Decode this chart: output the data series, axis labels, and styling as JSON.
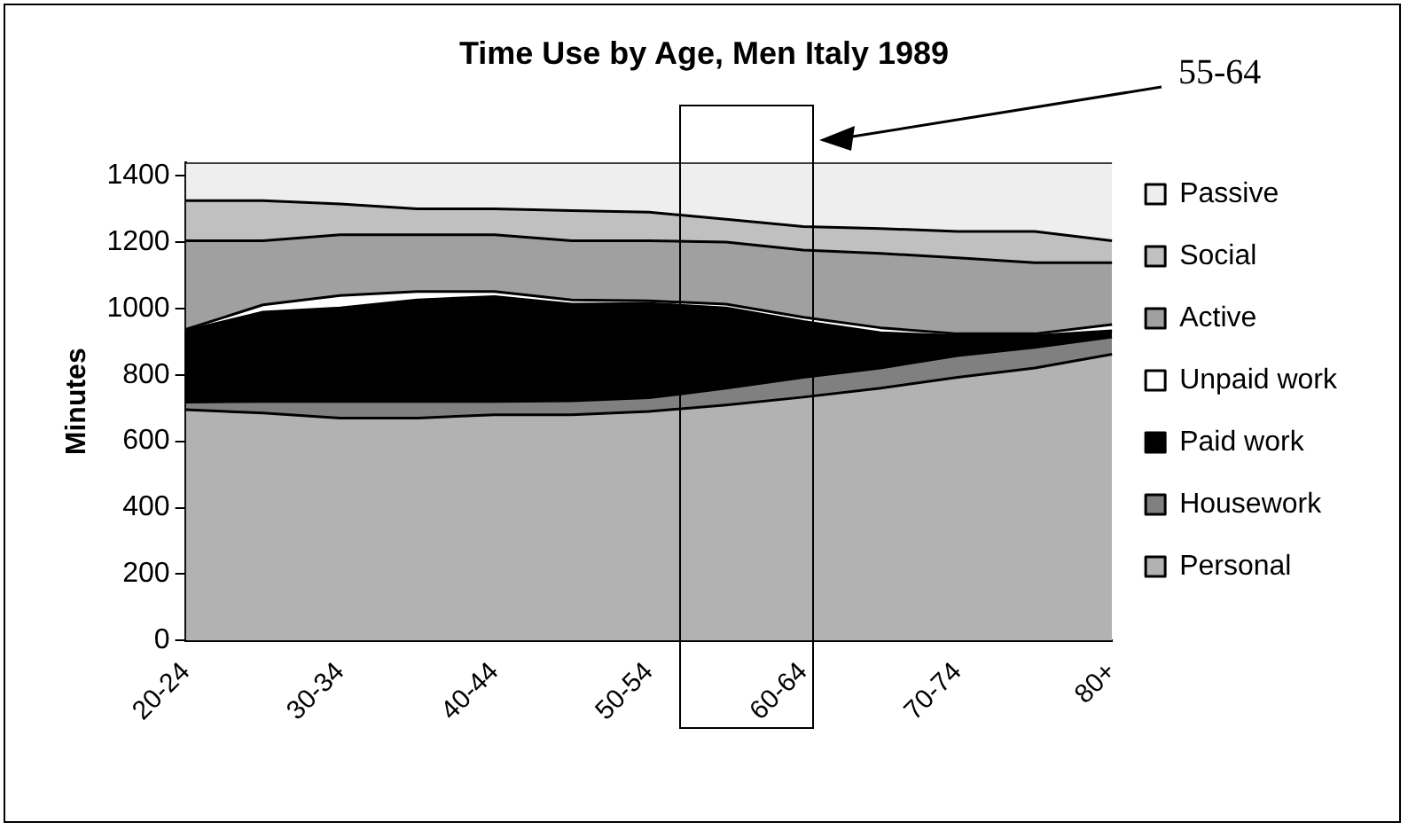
{
  "chart_data": {
    "type": "area",
    "stacked": true,
    "title": "Time Use by Age, Men Italy 1989",
    "ylabel": "Minutes",
    "categories": [
      "20-24",
      null,
      "30-34",
      null,
      "40-44",
      null,
      "50-54",
      null,
      "60-64",
      null,
      "70-74",
      null,
      "80+"
    ],
    "ylim": [
      0,
      1440
    ],
    "yticks": [
      0,
      200,
      400,
      600,
      800,
      1000,
      1200,
      1400
    ],
    "grid": false,
    "legend": "right",
    "annotations": [
      "55-64"
    ],
    "series": [
      {
        "name": "Personal",
        "color": "#b2b2b2",
        "values": [
          695,
          685,
          670,
          670,
          680,
          680,
          690,
          709,
          733,
          760,
          793,
          821,
          862
        ]
      },
      {
        "name": "Housework",
        "color": "#808080",
        "values": [
          23,
          35,
          50,
          50,
          40,
          42,
          41,
          51,
          60,
          61,
          65,
          62,
          52
        ]
      },
      {
        "name": "Paid work",
        "color": "#000000",
        "values": [
          215,
          269,
          282,
          306,
          316,
          291,
          284,
          242,
          168,
          106,
          60,
          35,
          19
        ]
      },
      {
        "name": "Unpaid work",
        "color": "#ffffff",
        "values": [
          4,
          22,
          37,
          25,
          15,
          13,
          8,
          11,
          13,
          15,
          6,
          6,
          19
        ]
      },
      {
        "name": "Active",
        "color": "#a0a0a0",
        "values": [
          267,
          193,
          183,
          171,
          171,
          178,
          181,
          187,
          202,
          224,
          229,
          214,
          186
        ]
      },
      {
        "name": "Social",
        "color": "#c0c0c0",
        "values": [
          121,
          121,
          93,
          78,
          78,
          91,
          86,
          69,
          71,
          75,
          79,
          94,
          66
        ]
      },
      {
        "name": "Passive",
        "color": "#eeeeee",
        "values": [
          115,
          115,
          125,
          140,
          140,
          145,
          150,
          171,
          193,
          199,
          208,
          208,
          236
        ]
      }
    ]
  }
}
